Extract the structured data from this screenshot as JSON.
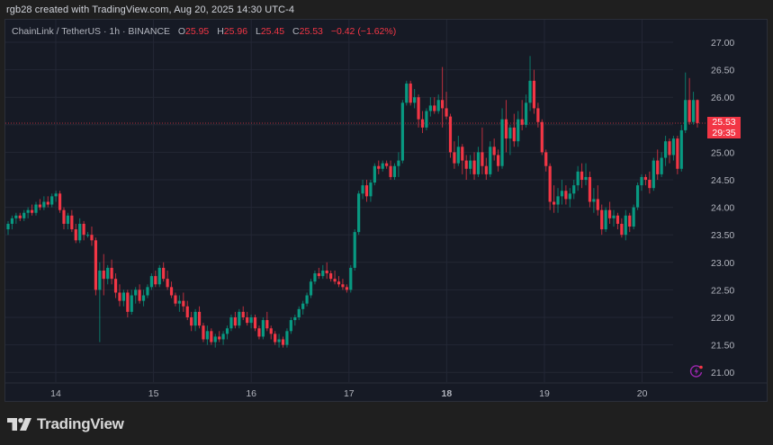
{
  "header": {
    "credit": "rgb28 created with TradingView.com, Aug 20, 2025 14:30 UTC-4"
  },
  "legend": {
    "symbol": "ChainLink / TetherUS · 1h · BINANCE",
    "open_label": "O",
    "open": "25.95",
    "high_label": "H",
    "high": "25.96",
    "low_label": "L",
    "low": "25.45",
    "close_label": "C",
    "close": "25.53",
    "change": "−0.42 (−1.62%)"
  },
  "price_tag": {
    "price": "25.53",
    "countdown": "29:35"
  },
  "footer": {
    "brand": "TradingView"
  },
  "colors": {
    "up": "#089981",
    "down": "#f23645",
    "background": "#161a25",
    "grid": "#232735",
    "text": "#b2b5be",
    "page_bg": "#1f1f1f",
    "accent_purple": "#9c27b0"
  },
  "chart_data": {
    "type": "candlestick",
    "title": "ChainLink / TetherUS · 1h · BINANCE",
    "xlabel": "",
    "ylabel": "",
    "x_ticks": [
      "14",
      "15",
      "16",
      "17",
      "18",
      "19",
      "20"
    ],
    "y_ticks": [
      "27.00",
      "26.50",
      "26.00",
      "25.50",
      "25.00",
      "24.50",
      "24.00",
      "23.50",
      "23.00",
      "22.50",
      "22.00",
      "21.50",
      "21.00"
    ],
    "ylim": [
      20.6,
      27.3
    ],
    "grid": true,
    "last_price": 25.53,
    "last_price_line": true,
    "ohlc": [
      [
        23.6,
        23.75,
        23.5,
        23.7
      ],
      [
        23.7,
        23.85,
        23.6,
        23.8
      ],
      [
        23.8,
        23.9,
        23.7,
        23.85
      ],
      [
        23.85,
        23.9,
        23.75,
        23.8
      ],
      [
        23.8,
        23.95,
        23.75,
        23.9
      ],
      [
        23.9,
        24.0,
        23.8,
        23.95
      ],
      [
        23.95,
        24.05,
        23.85,
        23.9
      ],
      [
        23.9,
        24.1,
        23.85,
        24.05
      ],
      [
        24.05,
        24.15,
        23.95,
        24.0
      ],
      [
        24.0,
        24.2,
        23.95,
        24.1
      ],
      [
        24.1,
        24.2,
        24.0,
        24.05
      ],
      [
        24.05,
        24.25,
        24.0,
        24.2
      ],
      [
        24.2,
        24.3,
        24.1,
        24.25
      ],
      [
        24.25,
        24.3,
        23.9,
        23.95
      ],
      [
        23.95,
        24.0,
        23.6,
        23.7
      ],
      [
        23.7,
        23.9,
        23.6,
        23.85
      ],
      [
        23.85,
        23.95,
        23.55,
        23.6
      ],
      [
        23.6,
        23.7,
        23.35,
        23.4
      ],
      [
        23.4,
        23.8,
        23.35,
        23.7
      ],
      [
        23.7,
        23.75,
        23.4,
        23.5
      ],
      [
        23.5,
        23.55,
        23.45,
        23.5
      ],
      [
        23.5,
        23.65,
        23.3,
        23.4
      ],
      [
        23.4,
        23.45,
        22.4,
        22.5
      ],
      [
        22.5,
        23.0,
        21.55,
        22.85
      ],
      [
        22.85,
        23.15,
        22.4,
        22.7
      ],
      [
        22.7,
        22.95,
        22.6,
        22.9
      ],
      [
        22.9,
        23.05,
        22.6,
        22.7
      ],
      [
        22.7,
        22.8,
        22.35,
        22.45
      ],
      [
        22.45,
        22.6,
        22.2,
        22.3
      ],
      [
        22.3,
        22.5,
        22.2,
        22.45
      ],
      [
        22.45,
        22.5,
        22.0,
        22.1
      ],
      [
        22.1,
        22.5,
        22.05,
        22.4
      ],
      [
        22.4,
        22.55,
        22.25,
        22.5
      ],
      [
        22.5,
        22.6,
        22.25,
        22.3
      ],
      [
        22.3,
        22.5,
        22.2,
        22.4
      ],
      [
        22.4,
        22.6,
        22.35,
        22.55
      ],
      [
        22.55,
        22.8,
        22.5,
        22.75
      ],
      [
        22.75,
        22.85,
        22.55,
        22.6
      ],
      [
        22.6,
        22.95,
        22.55,
        22.9
      ],
      [
        22.9,
        23.0,
        22.65,
        22.7
      ],
      [
        22.7,
        22.85,
        22.5,
        22.55
      ],
      [
        22.55,
        22.65,
        22.35,
        22.4
      ],
      [
        22.4,
        22.45,
        22.2,
        22.25
      ],
      [
        22.25,
        22.4,
        22.1,
        22.3
      ],
      [
        22.3,
        22.45,
        22.1,
        22.2
      ],
      [
        22.2,
        22.3,
        21.95,
        22.0
      ],
      [
        22.0,
        22.1,
        21.75,
        21.85
      ],
      [
        21.85,
        22.15,
        21.75,
        22.1
      ],
      [
        22.1,
        22.2,
        21.8,
        21.85
      ],
      [
        21.85,
        21.9,
        21.55,
        21.6
      ],
      [
        21.6,
        21.85,
        21.5,
        21.75
      ],
      [
        21.75,
        21.8,
        21.5,
        21.55
      ],
      [
        21.55,
        21.7,
        21.45,
        21.65
      ],
      [
        21.65,
        21.75,
        21.55,
        21.6
      ],
      [
        21.6,
        21.75,
        21.5,
        21.7
      ],
      [
        21.7,
        21.85,
        21.6,
        21.8
      ],
      [
        21.8,
        22.05,
        21.75,
        22.0
      ],
      [
        22.0,
        22.1,
        21.8,
        21.85
      ],
      [
        21.85,
        22.15,
        21.8,
        22.1
      ],
      [
        22.1,
        22.2,
        21.95,
        22.0
      ],
      [
        22.0,
        22.1,
        21.85,
        21.9
      ],
      [
        21.9,
        22.05,
        21.8,
        22.0
      ],
      [
        22.0,
        22.05,
        21.75,
        21.8
      ],
      [
        21.8,
        21.85,
        21.6,
        21.65
      ],
      [
        21.65,
        22.0,
        21.6,
        21.95
      ],
      [
        21.95,
        22.1,
        21.75,
        21.8
      ],
      [
        21.8,
        21.85,
        21.6,
        21.7
      ],
      [
        21.7,
        21.75,
        21.5,
        21.55
      ],
      [
        21.55,
        21.7,
        21.45,
        21.6
      ],
      [
        21.6,
        21.65,
        21.45,
        21.5
      ],
      [
        21.5,
        21.8,
        21.45,
        21.75
      ],
      [
        21.75,
        22.0,
        21.7,
        21.95
      ],
      [
        21.95,
        22.05,
        21.85,
        22.0
      ],
      [
        22.0,
        22.2,
        21.95,
        22.15
      ],
      [
        22.15,
        22.3,
        22.05,
        22.25
      ],
      [
        22.25,
        22.45,
        22.2,
        22.4
      ],
      [
        22.4,
        22.7,
        22.35,
        22.65
      ],
      [
        22.65,
        22.85,
        22.6,
        22.8
      ],
      [
        22.8,
        22.9,
        22.7,
        22.75
      ],
      [
        22.75,
        22.95,
        22.7,
        22.85
      ],
      [
        22.85,
        23.0,
        22.7,
        22.8
      ],
      [
        22.8,
        22.85,
        22.65,
        22.7
      ],
      [
        22.7,
        22.85,
        22.6,
        22.65
      ],
      [
        22.65,
        22.75,
        22.55,
        22.6
      ],
      [
        22.6,
        22.7,
        22.5,
        22.55
      ],
      [
        22.55,
        22.6,
        22.45,
        22.5
      ],
      [
        22.5,
        22.95,
        22.45,
        22.9
      ],
      [
        22.9,
        23.6,
        22.85,
        23.55
      ],
      [
        23.55,
        24.3,
        23.5,
        24.25
      ],
      [
        24.25,
        24.5,
        24.15,
        24.4
      ],
      [
        24.4,
        24.5,
        24.1,
        24.2
      ],
      [
        24.2,
        24.5,
        24.1,
        24.45
      ],
      [
        24.45,
        24.8,
        24.4,
        24.75
      ],
      [
        24.75,
        24.85,
        24.6,
        24.7
      ],
      [
        24.7,
        24.85,
        24.65,
        24.8
      ],
      [
        24.8,
        24.85,
        24.7,
        24.75
      ],
      [
        24.75,
        24.85,
        24.5,
        24.55
      ],
      [
        24.55,
        24.8,
        24.5,
        24.75
      ],
      [
        24.75,
        25.0,
        24.55,
        24.85
      ],
      [
        24.85,
        25.95,
        24.8,
        25.9
      ],
      [
        25.9,
        26.3,
        25.85,
        26.25
      ],
      [
        26.25,
        26.3,
        25.85,
        25.9
      ],
      [
        25.9,
        26.15,
        25.8,
        26.0
      ],
      [
        26.0,
        26.05,
        25.45,
        25.6
      ],
      [
        25.6,
        25.75,
        25.35,
        25.45
      ],
      [
        25.45,
        25.8,
        25.4,
        25.75
      ],
      [
        25.75,
        26.0,
        25.65,
        25.85
      ],
      [
        25.85,
        26.0,
        25.7,
        25.75
      ],
      [
        25.75,
        26.05,
        25.7,
        25.95
      ],
      [
        25.95,
        26.55,
        25.45,
        25.8
      ],
      [
        25.8,
        26.1,
        25.6,
        25.65
      ],
      [
        25.65,
        25.7,
        24.9,
        25.0
      ],
      [
        25.0,
        25.2,
        24.7,
        24.8
      ],
      [
        24.8,
        25.3,
        24.75,
        25.1
      ],
      [
        25.1,
        25.15,
        24.6,
        24.85
      ],
      [
        24.85,
        24.95,
        24.5,
        24.7
      ],
      [
        24.7,
        24.95,
        24.6,
        24.85
      ],
      [
        24.85,
        25.0,
        24.5,
        24.6
      ],
      [
        24.6,
        25.1,
        24.55,
        25.0
      ],
      [
        25.0,
        25.45,
        24.6,
        24.75
      ],
      [
        24.75,
        24.9,
        24.5,
        24.6
      ],
      [
        24.6,
        25.2,
        24.55,
        25.1
      ],
      [
        25.1,
        25.25,
        24.85,
        24.95
      ],
      [
        24.95,
        25.05,
        24.65,
        24.75
      ],
      [
        24.75,
        25.8,
        24.7,
        25.6
      ],
      [
        25.6,
        25.95,
        25.0,
        25.25
      ],
      [
        25.25,
        25.5,
        24.95,
        25.45
      ],
      [
        25.45,
        25.7,
        25.1,
        25.2
      ],
      [
        25.2,
        25.75,
        25.1,
        25.6
      ],
      [
        25.6,
        25.95,
        25.4,
        25.5
      ],
      [
        25.5,
        26.05,
        25.45,
        25.9
      ],
      [
        25.9,
        26.75,
        25.75,
        26.3
      ],
      [
        26.3,
        26.5,
        25.7,
        25.8
      ],
      [
        25.8,
        25.9,
        25.45,
        25.55
      ],
      [
        25.55,
        25.6,
        24.95,
        25.0
      ],
      [
        25.0,
        25.05,
        24.65,
        24.75
      ],
      [
        24.75,
        24.8,
        23.95,
        24.1
      ],
      [
        24.1,
        24.4,
        23.9,
        24.05
      ],
      [
        24.05,
        24.35,
        23.9,
        24.2
      ],
      [
        24.2,
        24.5,
        24.05,
        24.3
      ],
      [
        24.3,
        24.4,
        24.05,
        24.15
      ],
      [
        24.15,
        24.35,
        24.0,
        24.25
      ],
      [
        24.25,
        24.5,
        24.15,
        24.4
      ],
      [
        24.4,
        24.75,
        24.3,
        24.65
      ],
      [
        24.65,
        24.8,
        24.35,
        24.5
      ],
      [
        24.5,
        24.8,
        24.4,
        24.55
      ],
      [
        24.55,
        24.65,
        24.0,
        24.1
      ],
      [
        24.1,
        24.35,
        23.9,
        24.15
      ],
      [
        24.15,
        24.4,
        23.85,
        23.95
      ],
      [
        23.95,
        24.05,
        23.5,
        23.6
      ],
      [
        23.6,
        24.0,
        23.55,
        23.95
      ],
      [
        23.95,
        24.1,
        23.7,
        23.8
      ],
      [
        23.8,
        23.95,
        23.65,
        23.85
      ],
      [
        23.85,
        23.9,
        23.6,
        23.7
      ],
      [
        23.7,
        23.8,
        23.45,
        23.5
      ],
      [
        23.5,
        23.95,
        23.4,
        23.85
      ],
      [
        23.85,
        23.9,
        23.55,
        23.65
      ],
      [
        23.65,
        24.05,
        23.6,
        24.0
      ],
      [
        24.0,
        24.45,
        23.95,
        24.4
      ],
      [
        24.4,
        24.6,
        24.3,
        24.55
      ],
      [
        24.55,
        24.6,
        24.4,
        24.5
      ],
      [
        24.5,
        24.65,
        24.25,
        24.35
      ],
      [
        24.35,
        24.9,
        24.3,
        24.85
      ],
      [
        24.85,
        25.05,
        24.5,
        24.6
      ],
      [
        24.6,
        25.0,
        24.55,
        24.9
      ],
      [
        24.9,
        25.3,
        24.75,
        25.2
      ],
      [
        25.2,
        25.25,
        24.8,
        24.95
      ],
      [
        24.95,
        25.3,
        24.85,
        25.25
      ],
      [
        25.25,
        25.3,
        24.6,
        24.7
      ],
      [
        24.7,
        25.5,
        24.65,
        25.4
      ],
      [
        25.4,
        26.45,
        25.35,
        25.95
      ],
      [
        25.95,
        26.35,
        25.5,
        25.55
      ],
      [
        25.55,
        26.1,
        25.5,
        25.95
      ],
      [
        25.95,
        25.96,
        25.45,
        25.53
      ]
    ]
  }
}
